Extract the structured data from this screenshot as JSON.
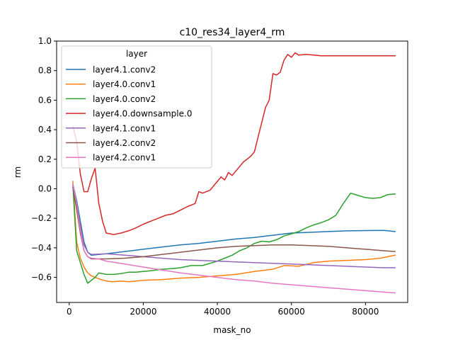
{
  "chart_data": {
    "type": "line",
    "title": "c10_res34_layer4_rm",
    "xlabel": "mask_no",
    "ylabel": "rm",
    "xlim": [
      -3400,
      91400
    ],
    "ylim": [
      -0.77,
      1.0
    ],
    "xticks": [
      0,
      20000,
      40000,
      60000,
      80000
    ],
    "yticks": [
      -0.6,
      -0.4,
      -0.2,
      0.0,
      0.2,
      0.4,
      0.6,
      0.8,
      1.0
    ],
    "xtick_labels": [
      "0",
      "20000",
      "40000",
      "60000",
      "80000"
    ],
    "ytick_labels": [
      "−0.6",
      "−0.4",
      "−0.2",
      "0.0",
      "0.2",
      "0.4",
      "0.6",
      "0.8",
      "1.0"
    ],
    "grid": false,
    "legend": {
      "title": "layer",
      "position": "top-left"
    },
    "series": [
      {
        "name": "layer4.1.conv2",
        "color": "#1f77b4",
        "points": [
          [
            1000,
            0.03
          ],
          [
            2000,
            -0.08
          ],
          [
            3000,
            -0.22
          ],
          [
            4000,
            -0.36
          ],
          [
            5000,
            -0.43
          ],
          [
            6000,
            -0.45
          ],
          [
            8000,
            -0.445
          ],
          [
            10000,
            -0.44
          ],
          [
            15000,
            -0.425
          ],
          [
            20000,
            -0.41
          ],
          [
            25000,
            -0.395
          ],
          [
            30000,
            -0.38
          ],
          [
            35000,
            -0.37
          ],
          [
            40000,
            -0.355
          ],
          [
            45000,
            -0.34
          ],
          [
            50000,
            -0.33
          ],
          [
            55000,
            -0.315
          ],
          [
            60000,
            -0.3
          ],
          [
            65000,
            -0.295
          ],
          [
            70000,
            -0.29
          ],
          [
            75000,
            -0.285
          ],
          [
            80000,
            -0.283
          ],
          [
            85000,
            -0.282
          ],
          [
            88000,
            -0.29
          ]
        ]
      },
      {
        "name": "layer4.0.conv1",
        "color": "#ff7f0e",
        "points": [
          [
            1000,
            0.05
          ],
          [
            2000,
            -0.36
          ],
          [
            3000,
            -0.47
          ],
          [
            4000,
            -0.53
          ],
          [
            5000,
            -0.57
          ],
          [
            6000,
            -0.59
          ],
          [
            8000,
            -0.61
          ],
          [
            10000,
            -0.625
          ],
          [
            12000,
            -0.63
          ],
          [
            14000,
            -0.625
          ],
          [
            16000,
            -0.63
          ],
          [
            18000,
            -0.625
          ],
          [
            20000,
            -0.62
          ],
          [
            25000,
            -0.615
          ],
          [
            30000,
            -0.605
          ],
          [
            35000,
            -0.6
          ],
          [
            40000,
            -0.59
          ],
          [
            45000,
            -0.58
          ],
          [
            50000,
            -0.56
          ],
          [
            55000,
            -0.545
          ],
          [
            58000,
            -0.52
          ],
          [
            62000,
            -0.525
          ],
          [
            66000,
            -0.5
          ],
          [
            70000,
            -0.49
          ],
          [
            75000,
            -0.485
          ],
          [
            80000,
            -0.48
          ],
          [
            84000,
            -0.47
          ],
          [
            88000,
            -0.45
          ]
        ]
      },
      {
        "name": "layer4.0.conv2",
        "color": "#2ca02c",
        "points": [
          [
            1000,
            0.02
          ],
          [
            2000,
            -0.42
          ],
          [
            3000,
            -0.5
          ],
          [
            4000,
            -0.58
          ],
          [
            5000,
            -0.64
          ],
          [
            6000,
            -0.62
          ],
          [
            7000,
            -0.6
          ],
          [
            8000,
            -0.57
          ],
          [
            10000,
            -0.58
          ],
          [
            12000,
            -0.58
          ],
          [
            14000,
            -0.575
          ],
          [
            16000,
            -0.565
          ],
          [
            18000,
            -0.565
          ],
          [
            20000,
            -0.56
          ],
          [
            22000,
            -0.555
          ],
          [
            25000,
            -0.545
          ],
          [
            28000,
            -0.54
          ],
          [
            30000,
            -0.535
          ],
          [
            33000,
            -0.52
          ],
          [
            36000,
            -0.52
          ],
          [
            38000,
            -0.505
          ],
          [
            40000,
            -0.49
          ],
          [
            42000,
            -0.47
          ],
          [
            44000,
            -0.45
          ],
          [
            46000,
            -0.42
          ],
          [
            48000,
            -0.4
          ],
          [
            50000,
            -0.37
          ],
          [
            52000,
            -0.355
          ],
          [
            54000,
            -0.36
          ],
          [
            56000,
            -0.345
          ],
          [
            58000,
            -0.32
          ],
          [
            60000,
            -0.305
          ],
          [
            62000,
            -0.29
          ],
          [
            64000,
            -0.265
          ],
          [
            66000,
            -0.245
          ],
          [
            68000,
            -0.23
          ],
          [
            70000,
            -0.21
          ],
          [
            72000,
            -0.18
          ],
          [
            74000,
            -0.1
          ],
          [
            76000,
            -0.03
          ],
          [
            78000,
            -0.045
          ],
          [
            80000,
            -0.06
          ],
          [
            82000,
            -0.065
          ],
          [
            84000,
            -0.06
          ],
          [
            86000,
            -0.04
          ],
          [
            88000,
            -0.035
          ]
        ]
      },
      {
        "name": "layer4.0.downsample.0",
        "color": "#d62728",
        "points": [
          [
            1000,
            0.42
          ],
          [
            2000,
            0.32
          ],
          [
            3000,
            0.1
          ],
          [
            4000,
            -0.02
          ],
          [
            5000,
            -0.02
          ],
          [
            6000,
            0.07
          ],
          [
            7000,
            0.14
          ],
          [
            8000,
            -0.1
          ],
          [
            9000,
            -0.22
          ],
          [
            10000,
            -0.3
          ],
          [
            12000,
            -0.31
          ],
          [
            14000,
            -0.3
          ],
          [
            16000,
            -0.285
          ],
          [
            18000,
            -0.265
          ],
          [
            20000,
            -0.24
          ],
          [
            22000,
            -0.22
          ],
          [
            24000,
            -0.2
          ],
          [
            26000,
            -0.18
          ],
          [
            28000,
            -0.17
          ],
          [
            30000,
            -0.145
          ],
          [
            32000,
            -0.12
          ],
          [
            34000,
            -0.1
          ],
          [
            35000,
            -0.02
          ],
          [
            36000,
            -0.03
          ],
          [
            38000,
            -0.01
          ],
          [
            40000,
            0.05
          ],
          [
            41000,
            0.08
          ],
          [
            42000,
            0.06
          ],
          [
            43000,
            0.11
          ],
          [
            44000,
            0.09
          ],
          [
            46000,
            0.15
          ],
          [
            47000,
            0.18
          ],
          [
            48000,
            0.2
          ],
          [
            49000,
            0.22
          ],
          [
            50000,
            0.25
          ],
          [
            51000,
            0.35
          ],
          [
            52000,
            0.45
          ],
          [
            53000,
            0.55
          ],
          [
            54000,
            0.6
          ],
          [
            55000,
            0.78
          ],
          [
            56000,
            0.77
          ],
          [
            57000,
            0.79
          ],
          [
            58000,
            0.87
          ],
          [
            59000,
            0.91
          ],
          [
            60000,
            0.89
          ],
          [
            61000,
            0.92
          ],
          [
            62000,
            0.905
          ],
          [
            64000,
            0.91
          ],
          [
            66000,
            0.905
          ],
          [
            68000,
            0.9
          ],
          [
            70000,
            0.9
          ],
          [
            75000,
            0.9
          ],
          [
            80000,
            0.9
          ],
          [
            85000,
            0.9
          ],
          [
            88000,
            0.9
          ]
        ]
      },
      {
        "name": "layer4.1.conv1",
        "color": "#9467bd",
        "points": [
          [
            1000,
            0.01
          ],
          [
            2000,
            -0.12
          ],
          [
            3000,
            -0.25
          ],
          [
            4000,
            -0.38
          ],
          [
            5000,
            -0.43
          ],
          [
            6000,
            -0.445
          ],
          [
            10000,
            -0.44
          ],
          [
            15000,
            -0.45
          ],
          [
            20000,
            -0.46
          ],
          [
            25000,
            -0.47
          ],
          [
            30000,
            -0.48
          ],
          [
            35000,
            -0.485
          ],
          [
            40000,
            -0.49
          ],
          [
            45000,
            -0.495
          ],
          [
            50000,
            -0.5
          ],
          [
            55000,
            -0.505
          ],
          [
            60000,
            -0.51
          ],
          [
            65000,
            -0.515
          ],
          [
            70000,
            -0.52
          ],
          [
            75000,
            -0.525
          ],
          [
            80000,
            -0.53
          ],
          [
            85000,
            -0.535
          ],
          [
            88000,
            -0.535
          ]
        ]
      },
      {
        "name": "layer4.2.conv2",
        "color": "#8c564b",
        "points": [
          [
            1000,
            0.01
          ],
          [
            2000,
            -0.14
          ],
          [
            3000,
            -0.3
          ],
          [
            4000,
            -0.42
          ],
          [
            5000,
            -0.46
          ],
          [
            6000,
            -0.475
          ],
          [
            10000,
            -0.475
          ],
          [
            15000,
            -0.47
          ],
          [
            20000,
            -0.46
          ],
          [
            25000,
            -0.445
          ],
          [
            30000,
            -0.43
          ],
          [
            35000,
            -0.415
          ],
          [
            40000,
            -0.4
          ],
          [
            45000,
            -0.39
          ],
          [
            50000,
            -0.385
          ],
          [
            55000,
            -0.38
          ],
          [
            60000,
            -0.38
          ],
          [
            65000,
            -0.385
          ],
          [
            70000,
            -0.39
          ],
          [
            75000,
            -0.4
          ],
          [
            80000,
            -0.41
          ],
          [
            85000,
            -0.42
          ],
          [
            88000,
            -0.425
          ]
        ]
      },
      {
        "name": "layer4.2.conv1",
        "color": "#e377c2",
        "points": [
          [
            1000,
            0.03
          ],
          [
            2000,
            -0.1
          ],
          [
            3000,
            -0.28
          ],
          [
            4000,
            -0.42
          ],
          [
            5000,
            -0.46
          ],
          [
            6000,
            -0.47
          ],
          [
            8000,
            -0.475
          ],
          [
            10000,
            -0.49
          ],
          [
            15000,
            -0.51
          ],
          [
            20000,
            -0.53
          ],
          [
            25000,
            -0.55
          ],
          [
            30000,
            -0.57
          ],
          [
            35000,
            -0.585
          ],
          [
            40000,
            -0.6
          ],
          [
            45000,
            -0.615
          ],
          [
            50000,
            -0.625
          ],
          [
            55000,
            -0.64
          ],
          [
            60000,
            -0.65
          ],
          [
            65000,
            -0.66
          ],
          [
            70000,
            -0.67
          ],
          [
            75000,
            -0.68
          ],
          [
            80000,
            -0.69
          ],
          [
            85000,
            -0.7
          ],
          [
            88000,
            -0.705
          ]
        ]
      }
    ]
  }
}
